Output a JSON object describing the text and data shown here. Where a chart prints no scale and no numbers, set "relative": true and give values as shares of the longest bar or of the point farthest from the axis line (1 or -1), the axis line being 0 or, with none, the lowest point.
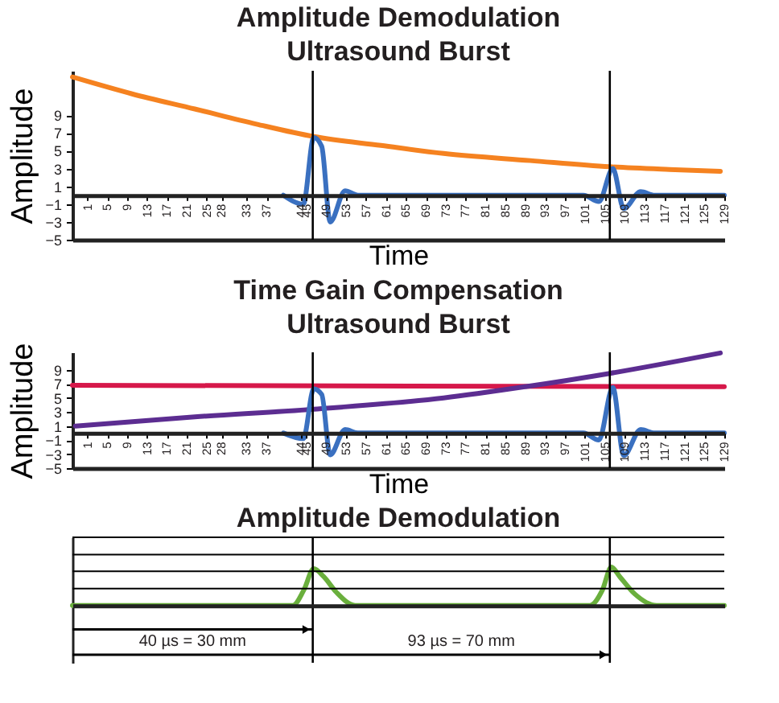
{
  "chart_data": [
    {
      "type": "line",
      "title": "Amplitude Demodulation",
      "subtitle": "Ultrasound Burst",
      "xlabel": "Time",
      "ylabel": "Amplitude",
      "xlim": [
        -2,
        129
      ],
      "ylim": [
        -5,
        14
      ],
      "yticks": [
        -5,
        -3,
        -1,
        1,
        3,
        5,
        7,
        9
      ],
      "xticks": [
        1,
        5,
        9,
        13,
        17,
        21,
        25,
        28,
        33,
        37,
        44,
        45,
        49,
        53,
        57,
        61,
        65,
        69,
        73,
        77,
        81,
        85,
        89,
        93,
        97,
        101,
        105,
        109,
        113,
        117,
        121,
        125,
        129
      ],
      "series": [
        {
          "color": "#f58220",
          "x": [
            -2,
            10,
            22.6,
            35,
            46.5,
            60,
            72.6,
            90,
            106,
            118,
            128.2
          ],
          "values": [
            13.3,
            11.4,
            9.7,
            8.0,
            6.6,
            5.6,
            4.7,
            3.9,
            3.2,
            2.9,
            2.7
          ]
        },
        {
          "color": "#3a70c0",
          "x": [
            40.4,
            44.4,
            46.5,
            48.1,
            49.8,
            52.8,
            55.4,
            100.7,
            103.8,
            106.6,
            108.8,
            112.2,
            115,
            129
          ],
          "values": [
            0,
            -1,
            6.5,
            5.5,
            -3,
            0.5,
            0,
            0,
            -0.7,
            3,
            -1.5,
            0.4,
            0,
            0
          ]
        }
      ],
      "ref_lines": [
        {
          "axis": "x",
          "value": 46.3,
          "color": "#000000"
        },
        {
          "axis": "x",
          "value": 106,
          "color": "#000000"
        }
      ]
    },
    {
      "type": "line",
      "title": "Time Gain Compensation",
      "subtitle": "Ultrasound Burst",
      "xlabel": "Time",
      "ylabel": "Amplitude",
      "xlim": [
        -2,
        129
      ],
      "ylim": [
        -5,
        11.5
      ],
      "yticks": [
        -5,
        -3,
        -1,
        1,
        3,
        5,
        7,
        9
      ],
      "xticks": [
        1,
        5,
        9,
        13,
        17,
        21,
        25,
        28,
        33,
        37,
        44,
        45,
        49,
        53,
        57,
        61,
        65,
        69,
        73,
        77,
        81,
        85,
        89,
        93,
        97,
        101,
        105,
        109,
        113,
        117,
        121,
        125,
        129
      ],
      "series": [
        {
          "color": "#d6184a",
          "x": [
            -2,
            129
          ],
          "values": [
            6.8,
            6.6
          ]
        },
        {
          "color": "#5c2d91",
          "x": [
            -1.4,
            22.6,
            46.5,
            72.6,
            89,
            106,
            128.2
          ],
          "values": [
            1.0,
            2.3,
            3.4,
            5.0,
            6.6,
            8.5,
            11.4
          ]
        },
        {
          "color": "#3a70c0",
          "x": [
            40.4,
            44.4,
            46.5,
            48.1,
            49.8,
            52.8,
            55.4,
            100.7,
            103.8,
            106.6,
            108.8,
            112.2,
            115,
            129
          ],
          "values": [
            0,
            -0.8,
            6.3,
            5.5,
            -3.1,
            0.5,
            0,
            0,
            -1,
            6.5,
            -3.2,
            0.5,
            0,
            0
          ]
        }
      ],
      "ref_lines": [
        {
          "axis": "x",
          "value": 46.3,
          "color": "#000000"
        },
        {
          "axis": "x",
          "value": 106,
          "color": "#000000"
        }
      ]
    },
    {
      "type": "line",
      "title": "Amplitude Demodulation",
      "relative": true,
      "xlim": [
        -2,
        129
      ],
      "series": [
        {
          "color": "#6aaf3d",
          "x": [
            -2,
            42.3,
            44.5,
            46.5,
            48.5,
            51,
            54.8,
            102,
            104.5,
            106.3,
            108,
            111,
            115.4,
            129
          ],
          "values": [
            0,
            0,
            0.4,
            0.96,
            0.75,
            0.35,
            0,
            0,
            0.4,
            1,
            0.75,
            0.3,
            0,
            0
          ]
        }
      ],
      "ref_lines": [
        {
          "axis": "x",
          "value": 46.3,
          "color": "#000000"
        },
        {
          "axis": "x",
          "value": 106,
          "color": "#000000"
        },
        {
          "axis": "y",
          "value": 0.44,
          "color": "#000000"
        },
        {
          "axis": "y",
          "value": 0.89,
          "color": "#000000"
        },
        {
          "axis": "y",
          "value": 1.33,
          "color": "#000000"
        },
        {
          "axis": "y",
          "value": 1.78,
          "color": "#000000"
        }
      ],
      "annotations": [
        "40 µs = 30 mm",
        "93 µs = 70 mm"
      ]
    }
  ]
}
